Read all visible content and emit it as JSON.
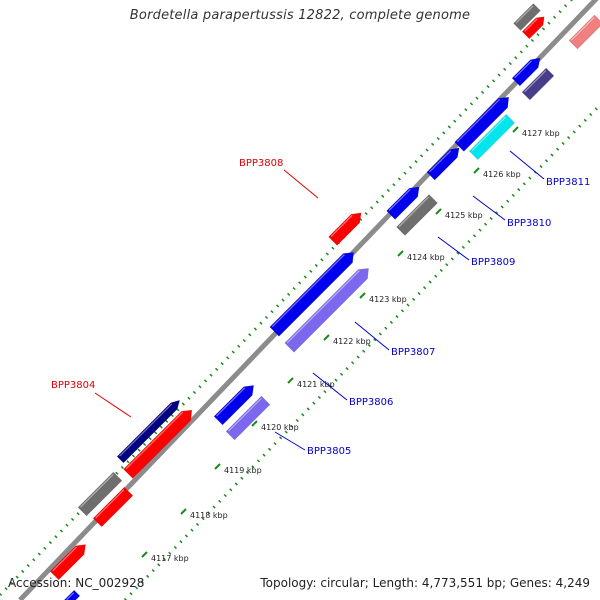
{
  "title": "Bordetella parapertussis 12822, complete genome",
  "accession": "Accession: NC_002928",
  "summary": "Topology: circular; Length: 4,773,551 bp; Genes: 4,249",
  "colors": {
    "backbone": "#8c8c8c",
    "tick": "#1a8a1a",
    "forward_label": "#dd0000",
    "reverse_label": "#0000cc",
    "red": "#ff0000",
    "pink": "#f08080",
    "blue": "#0000ee",
    "purple": "#7b68ee",
    "darkslate": "#483d8b",
    "navy": "#000080",
    "gray": "#6e6e6e",
    "cyan": "#00e5ee"
  },
  "scale_labels": [
    "4117 kbp",
    "4118 kbp",
    "4119 kbp",
    "4120 kbp",
    "4121 kbp",
    "4122 kbp",
    "4123 kbp",
    "4124 kbp",
    "4125 kbp",
    "4126 kbp",
    "4127 kbp"
  ],
  "gene_labels": [
    {
      "text": "BPP3804",
      "strand": "forward"
    },
    {
      "text": "BPP3808",
      "strand": "forward"
    },
    {
      "text": "BPP3805",
      "strand": "reverse"
    },
    {
      "text": "BPP3806",
      "strand": "reverse"
    },
    {
      "text": "BPP3807",
      "strand": "reverse"
    },
    {
      "text": "BPP3809",
      "strand": "reverse"
    },
    {
      "text": "BPP3810",
      "strand": "reverse"
    },
    {
      "text": "BPP3811",
      "strand": "reverse"
    }
  ]
}
